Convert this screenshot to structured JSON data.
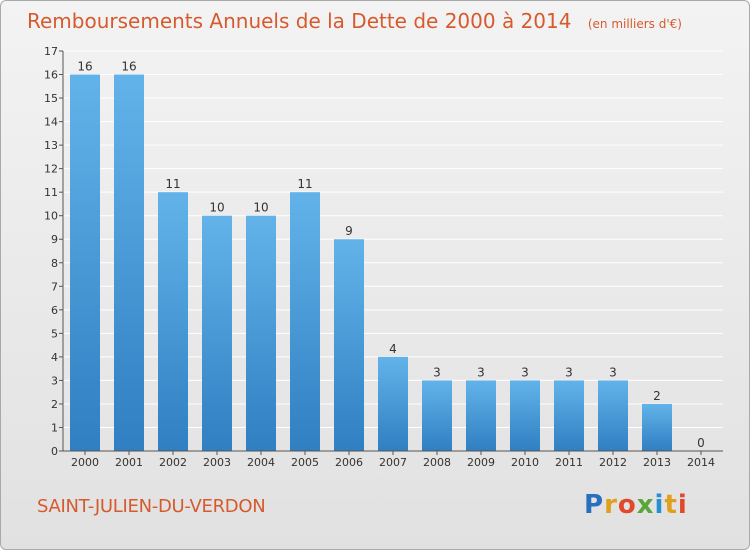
{
  "header": {
    "title": "Remboursements Annuels de la Dette de 2000 à 2014",
    "unit": "(en milliers d'€)"
  },
  "footer": {
    "place": "SAINT-JULIEN-DU-VERDON",
    "logo_letters": [
      "P",
      "r",
      "o",
      "x",
      "i",
      "t",
      "i"
    ],
    "logo_colors": [
      "#2a6fbd",
      "#e0a01b",
      "#e04a2a",
      "#5aa63a",
      "#2a8fd0",
      "#e0a01b",
      "#e04a2a"
    ]
  },
  "colors": {
    "accent": "#d65a2e",
    "bar": "#5aace6"
  },
  "chart_data": {
    "type": "bar",
    "title": "Remboursements Annuels de la Dette de 2000 à 2014",
    "unit": "(en milliers d'€)",
    "categories": [
      "2000",
      "2001",
      "2002",
      "2003",
      "2004",
      "2005",
      "2006",
      "2007",
      "2008",
      "2009",
      "2010",
      "2011",
      "2012",
      "2013",
      "2014"
    ],
    "values": [
      16,
      16,
      11,
      10,
      10,
      11,
      9,
      4,
      3,
      3,
      3,
      3,
      3,
      2,
      0
    ],
    "ylim": [
      0,
      17
    ],
    "yticks": [
      0,
      1,
      2,
      3,
      4,
      5,
      6,
      7,
      8,
      9,
      10,
      11,
      12,
      13,
      14,
      15,
      16,
      17
    ],
    "grid": true,
    "legend": "none"
  }
}
